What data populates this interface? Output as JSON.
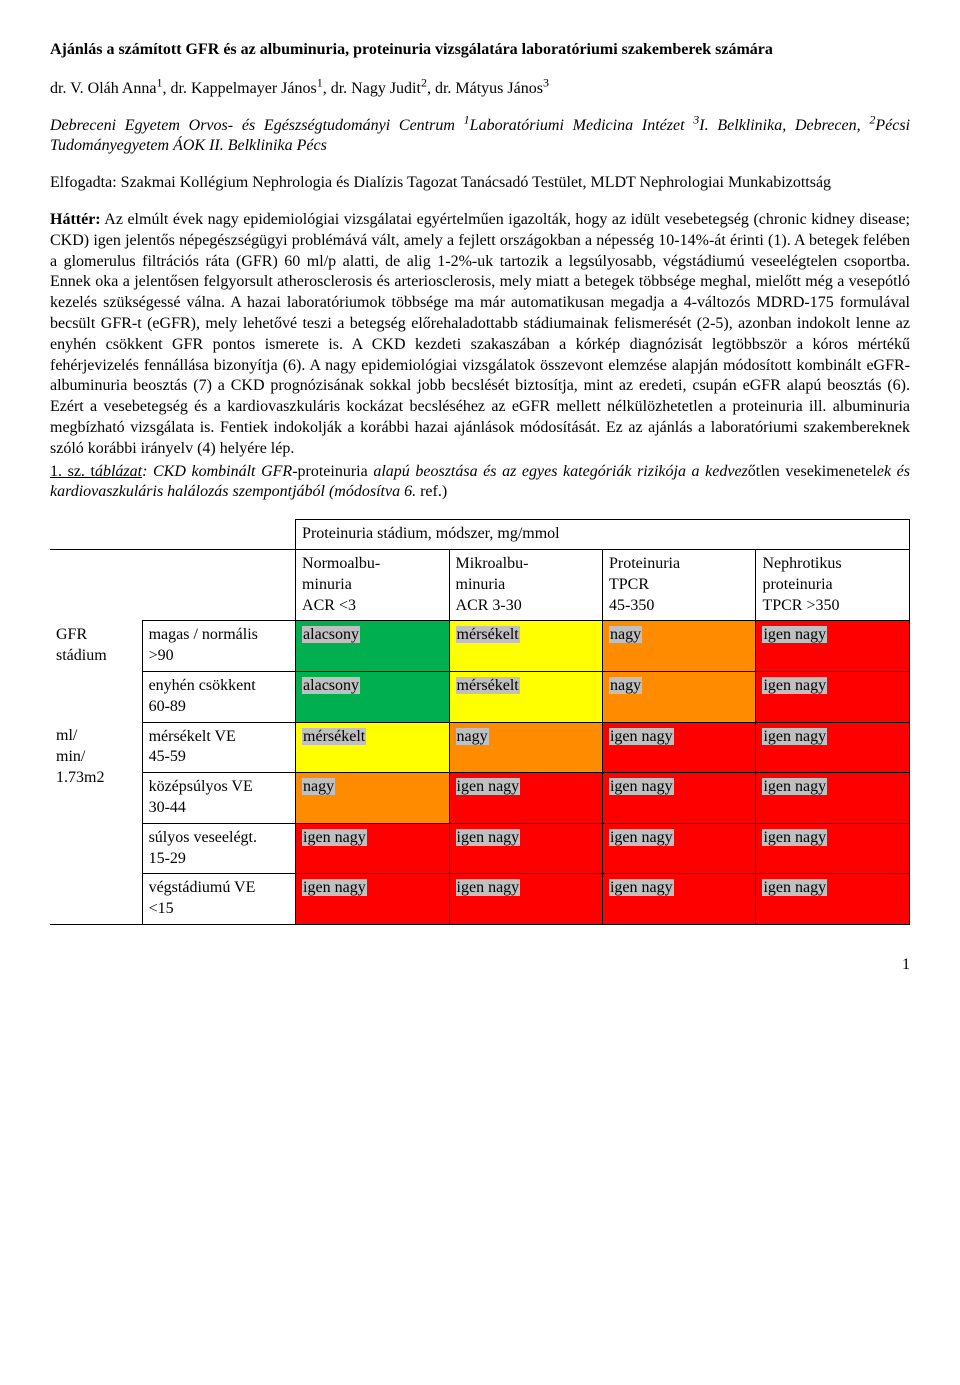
{
  "title": "Ajánlás a számított GFR és az albuminuria, proteinuria vizsgálatára laboratóriumi szakemberek számára",
  "authors_html": "dr. V. Oláh Anna<sup>1</sup>, dr. Kappelmayer János<sup>1</sup>, dr. Nagy Judit<sup>2</sup>, dr. Mátyus János<sup>3</sup>",
  "affil_html": "Debreceni Egyetem Orvos- és Egészségtudományi Centrum <sup>1</sup>Laboratóriumi Medicina Intézet <sup>3</sup>I. Belklinika, Debrecen, <sup>2</sup>Pécsi Tudományegyetem ÁOK II. Belklinika Pécs",
  "accepted": "Elfogadta: Szakmai Kollégium Nephrologia és Dialízis Tagozat Tanácsadó Testület, MLDT Nephrologiai Munkabizottság",
  "body_html": "<b>Háttér:</b> Az elmúlt évek nagy epidemiológiai vizsgálatai egyértelműen igazolták, hogy az idült vesebetegség (chronic kidney disease; CKD) igen jelentős népegészségügyi problémává vált, amely a fejlett országokban a népesség 10-14%-át érinti (1). A betegek felében a glomerulus filtrációs ráta (GFR) 60 ml/p alatti, de alig 1-2%-uk tartozik a legsúlyosabb, végstádiumú veseelégtelen csoportba. Ennek oka a jelentősen felgyorsult atherosclerosis és arteriosclerosis, mely miatt a betegek többsége meghal, mielőtt még a vesepótló kezelés szükségessé válna. A hazai laboratóriumok többsége ma már automatikusan megadja a 4-változós MDRD-175 formulával becsült GFR-t (eGFR), mely lehetővé teszi a betegség előrehaladottabb stádiumainak felismerését (2-5), azonban indokolt lenne az enyhén csökkent GFR pontos ismerete is. A CKD kezdeti szakaszában a kórkép diagnózisát legtöbbször a kóros mértékű fehérjevizelés fennállása bizonyítja (6). A nagy epidemiológiai vizsgálatok összevont elemzése alapján módosított kombinált eGFR-albuminuria beosztás (7) a CKD prognózisának sokkal jobb becslését biztosítja, mint az eredeti, csupán eGFR alapú beosztás (6). Ezért a vesebetegség és a kardiovaszkuláris kockázat becsléséhez az eGFR mellett nélkülözhetetlen a proteinuria ill. albuminuria megbízható vizsgálata is. Fentiek indokolják a korábbi hazai ajánlások módosítását. Ez az ajánlás a laboratóriumi szakembereknek szóló korábbi irányelv (4) helyére lép.",
  "table_caption_html": "<span class=\"underline\">1. sz. t</span><span class=\"italic\"><span class=\"underline\">áblázat</span>: CKD kombinált GFR-</span>proteinuria <span class=\"italic\">alapú beosztása és az egyes kategóriák rizikója a kedvez</span>őtlen vesekimenetel<span class=\"italic\">ek és kardiovaszkuláris halálozás szempontjából (módosítva 6. </span>ref.)",
  "table": {
    "header_span": "Proteinuria stádium, módszer, mg/mmol",
    "col_headers": [
      {
        "l1": "Normoalbu-",
        "l2": "minuria",
        "l3": "ACR <3"
      },
      {
        "l1": "Mikroalbu-",
        "l2": "minuria",
        "l3": "ACR 3-30"
      },
      {
        "l1": "Proteinuria",
        "l2": "TPCR",
        "l3": "45-350"
      },
      {
        "l1": "Nephrotikus",
        "l2": "proteinuria",
        "l3": "TPCR >350"
      }
    ],
    "row_header_top": "GFR stádium",
    "row_header_bottom": "ml/ min/ 1.73m2",
    "rows": [
      {
        "label1": "magas / normális",
        "label2": ">90",
        "cells": [
          {
            "t": "alacsony",
            "c": "#00b050"
          },
          {
            "t": "mérsékelt",
            "c": "#ffff00"
          },
          {
            "t": "nagy",
            "c": "#ff8c00"
          },
          {
            "t": "igen nagy",
            "c": "#ff0000"
          }
        ]
      },
      {
        "label1": "enyhén csökkent",
        "label2": "60-89",
        "cells": [
          {
            "t": "alacsony",
            "c": "#00b050"
          },
          {
            "t": "mérsékelt",
            "c": "#ffff00"
          },
          {
            "t": "nagy",
            "c": "#ff8c00"
          },
          {
            "t": "igen nagy",
            "c": "#ff0000"
          }
        ]
      },
      {
        "label1": "mérsékelt VE",
        "label2": "45-59",
        "cells": [
          {
            "t": "mérsékelt",
            "c": "#ffff00"
          },
          {
            "t": "nagy",
            "c": "#ff8c00"
          },
          {
            "t": "igen nagy",
            "c": "#ff0000"
          },
          {
            "t": "igen nagy",
            "c": "#ff0000"
          }
        ]
      },
      {
        "label1": "középsúlyos VE",
        "label2": "30-44",
        "cells": [
          {
            "t": "nagy",
            "c": "#ff8c00"
          },
          {
            "t": "igen nagy",
            "c": "#ff0000"
          },
          {
            "t": "igen nagy",
            "c": "#ff0000"
          },
          {
            "t": "igen nagy",
            "c": "#ff0000"
          }
        ]
      },
      {
        "label1": "súlyos veseelégt.",
        "label2": "15-29",
        "cells": [
          {
            "t": "igen nagy",
            "c": "#ff0000"
          },
          {
            "t": "igen nagy",
            "c": "#ff0000"
          },
          {
            "t": "igen nagy",
            "c": "#ff0000"
          },
          {
            "t": "igen nagy",
            "c": "#ff0000"
          }
        ]
      },
      {
        "label1": "végstádiumú VE",
        "label2": "<15",
        "cells": [
          {
            "t": "igen nagy",
            "c": "#ff0000"
          },
          {
            "t": "igen nagy",
            "c": "#ff0000"
          },
          {
            "t": "igen nagy",
            "c": "#ff0000"
          },
          {
            "t": "igen nagy",
            "c": "#ff0000"
          }
        ]
      }
    ],
    "highlight_gray": "#c0c0c0",
    "col_widths": [
      "90px",
      "150px",
      "150px",
      "150px",
      "150px",
      "150px"
    ]
  },
  "page_number": "1"
}
